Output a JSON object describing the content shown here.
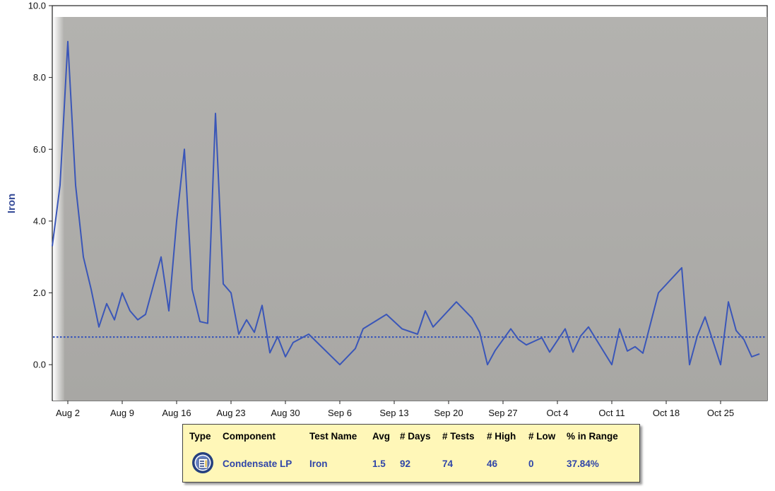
{
  "chart_data": {
    "type": "line",
    "ylabel": "Iron",
    "xlabel": "",
    "title": "",
    "ylim": [
      -1,
      10
    ],
    "yticks": [
      "0.0",
      "2.0",
      "4.0",
      "6.0",
      "8.0",
      "10.0"
    ],
    "xlim": [
      "2023-07-31",
      "2023-10-31"
    ],
    "xticks": [
      {
        "date": "2023-08-02",
        "label": "Aug 2"
      },
      {
        "date": "2023-08-09",
        "label": "Aug 9"
      },
      {
        "date": "2023-08-16",
        "label": "Aug 16"
      },
      {
        "date": "2023-08-23",
        "label": "Aug 23"
      },
      {
        "date": "2023-08-30",
        "label": "Aug 30"
      },
      {
        "date": "2023-09-06",
        "label": "Sep 6"
      },
      {
        "date": "2023-09-13",
        "label": "Sep 13"
      },
      {
        "date": "2023-09-20",
        "label": "Sep 20"
      },
      {
        "date": "2023-09-27",
        "label": "Sep 27"
      },
      {
        "date": "2023-10-04",
        "label": "Oct 4"
      },
      {
        "date": "2023-10-11",
        "label": "Oct 11"
      },
      {
        "date": "2023-10-18",
        "label": "Oct 18"
      },
      {
        "date": "2023-10-25",
        "label": "Oct 25"
      }
    ],
    "series": [
      {
        "color": "#3a56b8",
        "points": [
          [
            "2023-07-31",
            3.3
          ],
          [
            "2023-08-01",
            5.0
          ],
          [
            "2023-08-02",
            9.0
          ],
          [
            "2023-08-03",
            5.0
          ],
          [
            "2023-08-04",
            3.0
          ],
          [
            "2023-08-05",
            2.1
          ],
          [
            "2023-08-06",
            1.05
          ],
          [
            "2023-08-07",
            1.7
          ],
          [
            "2023-08-08",
            1.25
          ],
          [
            "2023-08-09",
            2.0
          ],
          [
            "2023-08-10",
            1.5
          ],
          [
            "2023-08-11",
            1.25
          ],
          [
            "2023-08-12",
            1.4
          ],
          [
            "2023-08-14",
            3.0
          ],
          [
            "2023-08-15",
            1.5
          ],
          [
            "2023-08-16",
            4.0
          ],
          [
            "2023-08-17",
            6.0
          ],
          [
            "2023-08-18",
            2.1
          ],
          [
            "2023-08-19",
            1.2
          ],
          [
            "2023-08-20",
            1.15
          ],
          [
            "2023-08-21",
            7.0
          ],
          [
            "2023-08-22",
            2.25
          ],
          [
            "2023-08-23",
            2.0
          ],
          [
            "2023-08-24",
            0.85
          ],
          [
            "2023-08-25",
            1.25
          ],
          [
            "2023-08-26",
            0.9
          ],
          [
            "2023-08-27",
            1.65
          ],
          [
            "2023-08-28",
            0.33
          ],
          [
            "2023-08-29",
            0.78
          ],
          [
            "2023-08-30",
            0.22
          ],
          [
            "2023-08-31",
            0.62
          ],
          [
            "2023-09-02",
            0.85
          ],
          [
            "2023-09-06",
            0.0
          ],
          [
            "2023-09-08",
            0.45
          ],
          [
            "2023-09-09",
            1.0
          ],
          [
            "2023-09-12",
            1.4
          ],
          [
            "2023-09-14",
            1.0
          ],
          [
            "2023-09-16",
            0.85
          ],
          [
            "2023-09-17",
            1.5
          ],
          [
            "2023-09-18",
            1.05
          ],
          [
            "2023-09-21",
            1.75
          ],
          [
            "2023-09-23",
            1.3
          ],
          [
            "2023-09-24",
            0.9
          ],
          [
            "2023-09-25",
            0.0
          ],
          [
            "2023-09-26",
            0.4
          ],
          [
            "2023-09-28",
            1.0
          ],
          [
            "2023-09-29",
            0.7
          ],
          [
            "2023-09-30",
            0.55
          ],
          [
            "2023-10-02",
            0.75
          ],
          [
            "2023-10-03",
            0.35
          ],
          [
            "2023-10-05",
            1.0
          ],
          [
            "2023-10-06",
            0.35
          ],
          [
            "2023-10-07",
            0.8
          ],
          [
            "2023-10-08",
            1.05
          ],
          [
            "2023-10-09",
            0.7
          ],
          [
            "2023-10-11",
            0.0
          ],
          [
            "2023-10-12",
            1.0
          ],
          [
            "2023-10-13",
            0.38
          ],
          [
            "2023-10-14",
            0.5
          ],
          [
            "2023-10-15",
            0.32
          ],
          [
            "2023-10-17",
            2.0
          ],
          [
            "2023-10-20",
            2.7
          ],
          [
            "2023-10-21",
            0.0
          ],
          [
            "2023-10-22",
            0.8
          ],
          [
            "2023-10-23",
            1.33
          ],
          [
            "2023-10-25",
            0.0
          ],
          [
            "2023-10-26",
            1.75
          ],
          [
            "2023-10-27",
            0.95
          ],
          [
            "2023-10-28",
            0.7
          ],
          [
            "2023-10-29",
            0.22
          ],
          [
            "2023-10-30",
            0.3
          ]
        ]
      }
    ],
    "reference_line": {
      "y": 0.77,
      "style": "dotted",
      "color": "#3a56b8"
    },
    "plot_background": "#aeadaa",
    "grid": false
  },
  "summary": {
    "headers": {
      "type": "Type",
      "component": "Component",
      "test_name": "Test Name",
      "avg": "Avg",
      "days": "# Days",
      "tests": "# Tests",
      "high": "# High",
      "low": "# Low",
      "in_range": "% in Range"
    },
    "row": {
      "type_icon": "component-type-icon",
      "component": "Condensate LP",
      "test_name": "Iron",
      "avg": "1.5",
      "days": "92",
      "tests": "74",
      "high": "46",
      "low": "0",
      "in_range": "37.84%"
    }
  }
}
